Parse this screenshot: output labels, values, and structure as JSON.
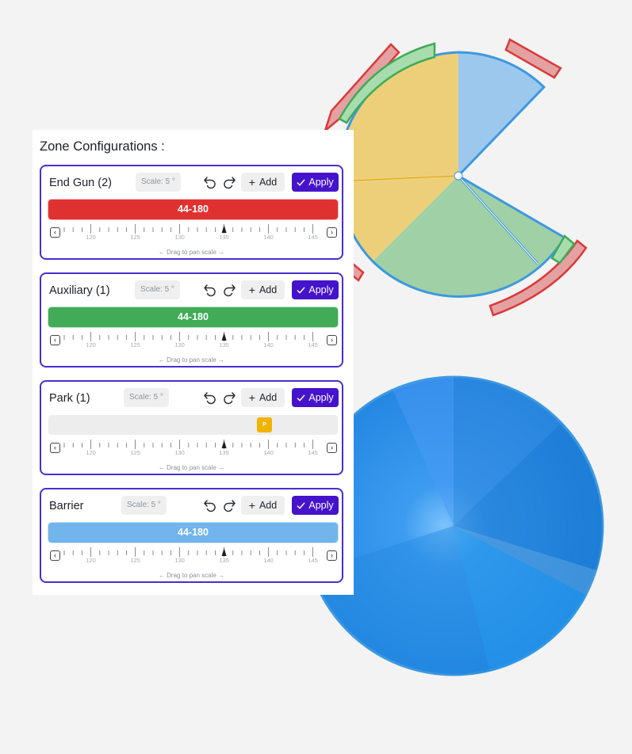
{
  "panel": {
    "title": "Zone Configurations :"
  },
  "zones": [
    {
      "name": "End Gun (2)",
      "scale": "Scale: 5 °",
      "add_label": "Add",
      "apply_label": "Apply",
      "range_label": "44-180",
      "range_color": "#e03131",
      "drag_hint": "← Drag to pan scale →"
    },
    {
      "name": "Auxiliary (1)",
      "scale": "Scale: 5 °",
      "add_label": "Add",
      "apply_label": "Apply",
      "range_label": "44-180",
      "range_color": "#41ab57",
      "drag_hint": "← Drag to pan scale →"
    },
    {
      "name": "Park (1)",
      "scale": "Scale: 5 °",
      "add_label": "Add",
      "apply_label": "Apply",
      "marker_label": "P",
      "marker_color": "#f0b400",
      "drag_hint": "← Drag to pan scale →"
    },
    {
      "name": "Barrier",
      "scale": "Scale: 5 °",
      "add_label": "Add",
      "apply_label": "Apply",
      "range_label": "44-180",
      "range_color": "#72b4ec",
      "drag_hint": "← Drag to pan scale →"
    }
  ],
  "ruler": {
    "labels": [
      "120",
      "125",
      "130",
      "135",
      "140",
      "145"
    ],
    "pointer_value": 135
  },
  "icons": {
    "undo": "undo-icon",
    "redo": "redo-icon",
    "add": "plus-icon",
    "apply": "check-icon",
    "prev": "chevron-left-icon",
    "next": "chevron-right-icon"
  },
  "colors": {
    "accent": "#4513cc",
    "card_border": "#4a2ecf",
    "pie_yellow": "#eecf79",
    "pie_light_blue": "#9cc8ee",
    "pie_green": "#9fd0a6",
    "pie_outline": "#3d98df",
    "arc_red": "#e4a1a1",
    "arc_green": "#9fd8a4"
  }
}
